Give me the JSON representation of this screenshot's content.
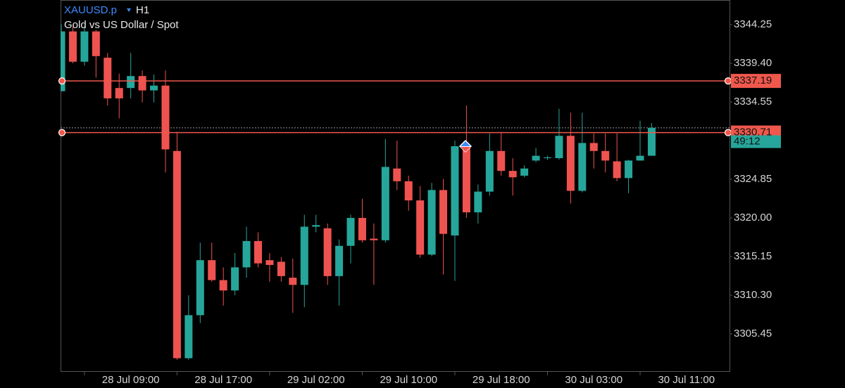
{
  "chart_data": {
    "type": "candlestick",
    "symbol": "XAUUSD.p",
    "timeframe": "H1",
    "description": "Gold vs US Dollar / Spot",
    "categories": [
      null,
      null,
      null,
      null,
      null,
      null,
      "28 Jul 09:00",
      null,
      null,
      null,
      null,
      null,
      null,
      null,
      "28 Jul 17:00",
      null,
      null,
      null,
      null,
      null,
      null,
      null,
      "29 Jul 02:00",
      null,
      null,
      null,
      null,
      null,
      null,
      null,
      "29 Jul 10:00",
      null,
      null,
      null,
      null,
      null,
      null,
      null,
      "29 Jul 18:00",
      null,
      null,
      null,
      null,
      null,
      null,
      null,
      "30 Jul 03:00",
      null,
      null,
      null,
      null,
      null,
      null,
      null,
      "30 Jul 11:00",
      null,
      null,
      null
    ],
    "open": [
      3335.9,
      3343.4,
      3339.6,
      3343.4,
      3340.1,
      3336.3,
      3336.3,
      3337.8,
      3336.0,
      3336.6,
      3328.4,
      3302.4,
      3307.8,
      3314.7,
      3312.2,
      3310.9,
      3313.8,
      3317.1,
      3314.7,
      3314.5,
      3312.5,
      3311.6,
      3318.9,
      3318.7,
      3312.7,
      3316.5,
      3320.0,
      3317.4,
      3317.2,
      3326.2,
      3324.6,
      3322.2,
      3315.4,
      3323.5,
      3317.8,
      3329.0,
      3320.7,
      3323.3,
      3328.4,
      3325.9,
      3325.3,
      3327.2,
      3327.5,
      3327.5,
      3330.3,
      3323.4,
      3329.4,
      3328.4,
      3327.1,
      3325.0,
      3327.2,
      3327.8,
      null,
      null,
      null,
      null,
      null,
      null
    ],
    "high": [
      3344.3,
      3344.0,
      3344.0,
      3343.6,
      3340.7,
      3338.1,
      3340.7,
      3338.5,
      3338.0,
      3338.5,
      3330.8,
      3310.3,
      3316.9,
      3316.9,
      3313.8,
      3315.6,
      3318.9,
      3318.2,
      3315.6,
      3315.1,
      3314.9,
      3320.4,
      3320.4,
      3319.3,
      3317.3,
      3320.4,
      3322.4,
      3319.3,
      3329.9,
      3329.7,
      3325.3,
      3324.0,
      3324.4,
      3324.9,
      3329.7,
      3334.1,
      3324.2,
      3330.6,
      3330.8,
      3327.5,
      3326.6,
      3328.8,
      3327.8,
      3333.7,
      3333.2,
      3333.2,
      3330.6,
      3330.6,
      3330.6,
      3327.3,
      3332.2,
      3331.9,
      null,
      null,
      null,
      null,
      null,
      null
    ],
    "low": [
      3335.9,
      3339.4,
      3339.1,
      3337.6,
      3334.1,
      3332.5,
      3335.0,
      3334.5,
      3334.5,
      3325.7,
      3302.2,
      3302.2,
      3306.8,
      3312.0,
      3309.0,
      3310.3,
      3312.5,
      3313.8,
      3312.0,
      3312.0,
      3308.1,
      3308.8,
      3318.2,
      3311.6,
      3309.0,
      3314.3,
      3316.9,
      3311.6,
      3316.9,
      3323.5,
      3320.9,
      3315.0,
      3315.2,
      3312.9,
      3312.1,
      3320.0,
      3319.3,
      3322.8,
      3325.3,
      3322.8,
      3325.1,
      3327.0,
      3327.3,
      3327.3,
      3321.8,
      3323.2,
      3326.2,
      3325.7,
      3324.6,
      3323.1,
      3327.2,
      3327.8,
      null,
      null,
      null,
      null,
      null,
      null
    ],
    "close": [
      3343.4,
      3339.6,
      3343.4,
      3340.3,
      3335.0,
      3335.0,
      3337.8,
      3336.0,
      3336.6,
      3328.6,
      3302.4,
      3307.8,
      3314.7,
      3312.2,
      3310.9,
      3313.8,
      3317.1,
      3314.3,
      3314.1,
      3312.7,
      3311.6,
      3318.9,
      3319.1,
      3312.7,
      3316.5,
      3320.0,
      3317.2,
      3317.2,
      3326.4,
      3324.6,
      3322.2,
      3315.4,
      3323.5,
      3318.0,
      3329.0,
      3320.7,
      3323.3,
      3328.4,
      3325.9,
      3325.1,
      3326.2,
      3327.8,
      3327.6,
      3330.3,
      3323.4,
      3329.4,
      3328.4,
      3327.2,
      3325.0,
      3327.2,
      3327.8,
      3331.3,
      null,
      null,
      null,
      null,
      null,
      null
    ],
    "up_color": "#26a69a",
    "down_color": "#ef5350",
    "ylim": [
      3300.78,
      3347.34
    ],
    "yticks": [
      3305.45,
      {
        "value": 3310.3,
        "label": "3310.30"
      },
      3315.15,
      {
        "value": 3320.0,
        "label": "3320.00"
      },
      3324.85,
      3334.55,
      {
        "value": 3339.4,
        "label": "3339.40"
      },
      3344.25
    ],
    "price_lines": [
      3337.19,
      3330.71
    ],
    "price_line_color": "#f0584c",
    "bid": 3331.3,
    "countdown": "49:12"
  }
}
